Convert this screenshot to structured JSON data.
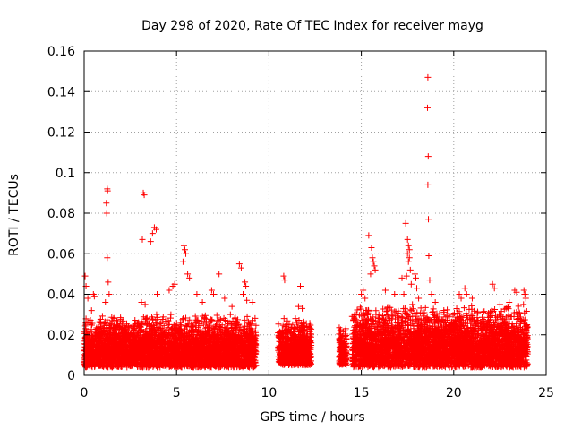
{
  "chart_data": {
    "type": "scatter",
    "title": "Day 298 of 2020, Rate Of TEC Index for receiver mayg",
    "xlabel": "GPS time / hours",
    "ylabel": "ROTI / TECUs",
    "xlim": [
      0,
      25
    ],
    "ylim": [
      0,
      0.16
    ],
    "xticks": [
      0,
      5,
      10,
      15,
      20,
      25
    ],
    "xtick_labels": [
      "0",
      "5",
      "10",
      "15",
      "20",
      "25"
    ],
    "yticks": [
      0,
      0.02,
      0.04,
      0.06,
      0.08,
      0.1,
      0.12,
      0.14,
      0.16
    ],
    "ytick_labels": [
      "0",
      "0.02",
      "0.04",
      "0.06",
      "0.08",
      "0.1",
      "0.12",
      "0.14",
      "0.16"
    ],
    "grid": true,
    "marker": "+",
    "marker_color": "#ff0000",
    "series": [
      {
        "name": "ROTI",
        "dense_segments": [
          {
            "start": 0.0,
            "end": 9.3,
            "y_min": 0.004,
            "y_max": 0.03
          },
          {
            "start": 10.5,
            "end": 12.3,
            "y_min": 0.005,
            "y_max": 0.028
          },
          {
            "start": 13.8,
            "end": 14.2,
            "y_min": 0.005,
            "y_max": 0.024
          },
          {
            "start": 14.5,
            "end": 24.0,
            "y_min": 0.004,
            "y_max": 0.035
          }
        ],
        "outliers": [
          {
            "x": 0.05,
            "y": 0.049
          },
          {
            "x": 0.1,
            "y": 0.044
          },
          {
            "x": 0.2,
            "y": 0.038
          },
          {
            "x": 0.4,
            "y": 0.032
          },
          {
            "x": 0.5,
            "y": 0.04
          },
          {
            "x": 0.55,
            "y": 0.039
          },
          {
            "x": 1.25,
            "y": 0.092
          },
          {
            "x": 1.27,
            "y": 0.091
          },
          {
            "x": 1.2,
            "y": 0.085
          },
          {
            "x": 1.22,
            "y": 0.08
          },
          {
            "x": 1.25,
            "y": 0.058
          },
          {
            "x": 1.3,
            "y": 0.046
          },
          {
            "x": 1.35,
            "y": 0.04
          },
          {
            "x": 1.15,
            "y": 0.036
          },
          {
            "x": 3.2,
            "y": 0.09
          },
          {
            "x": 3.25,
            "y": 0.089
          },
          {
            "x": 3.15,
            "y": 0.067
          },
          {
            "x": 3.1,
            "y": 0.036
          },
          {
            "x": 3.3,
            "y": 0.035
          },
          {
            "x": 3.8,
            "y": 0.073
          },
          {
            "x": 3.9,
            "y": 0.072
          },
          {
            "x": 3.7,
            "y": 0.07
          },
          {
            "x": 3.6,
            "y": 0.066
          },
          {
            "x": 3.95,
            "y": 0.04
          },
          {
            "x": 4.6,
            "y": 0.042
          },
          {
            "x": 4.8,
            "y": 0.044
          },
          {
            "x": 4.9,
            "y": 0.045
          },
          {
            "x": 5.4,
            "y": 0.064
          },
          {
            "x": 5.45,
            "y": 0.062
          },
          {
            "x": 5.5,
            "y": 0.06
          },
          {
            "x": 5.35,
            "y": 0.056
          },
          {
            "x": 5.6,
            "y": 0.05
          },
          {
            "x": 5.7,
            "y": 0.048
          },
          {
            "x": 6.1,
            "y": 0.04
          },
          {
            "x": 6.4,
            "y": 0.036
          },
          {
            "x": 6.9,
            "y": 0.042
          },
          {
            "x": 7.0,
            "y": 0.04
          },
          {
            "x": 7.3,
            "y": 0.05
          },
          {
            "x": 7.6,
            "y": 0.038
          },
          {
            "x": 8.0,
            "y": 0.034
          },
          {
            "x": 8.4,
            "y": 0.055
          },
          {
            "x": 8.5,
            "y": 0.053
          },
          {
            "x": 8.6,
            "y": 0.04
          },
          {
            "x": 8.7,
            "y": 0.046
          },
          {
            "x": 8.75,
            "y": 0.044
          },
          {
            "x": 8.8,
            "y": 0.037
          },
          {
            "x": 9.1,
            "y": 0.036
          },
          {
            "x": 10.8,
            "y": 0.049
          },
          {
            "x": 10.85,
            "y": 0.047
          },
          {
            "x": 11.7,
            "y": 0.044
          },
          {
            "x": 11.6,
            "y": 0.034
          },
          {
            "x": 11.8,
            "y": 0.033
          },
          {
            "x": 15.0,
            "y": 0.04
          },
          {
            "x": 15.1,
            "y": 0.042
          },
          {
            "x": 15.2,
            "y": 0.038
          },
          {
            "x": 15.4,
            "y": 0.069
          },
          {
            "x": 15.5,
            "y": 0.05
          },
          {
            "x": 15.55,
            "y": 0.063
          },
          {
            "x": 15.6,
            "y": 0.058
          },
          {
            "x": 15.65,
            "y": 0.056
          },
          {
            "x": 15.7,
            "y": 0.054
          },
          {
            "x": 15.75,
            "y": 0.052
          },
          {
            "x": 16.3,
            "y": 0.042
          },
          {
            "x": 16.8,
            "y": 0.04
          },
          {
            "x": 17.2,
            "y": 0.048
          },
          {
            "x": 17.4,
            "y": 0.075
          },
          {
            "x": 17.5,
            "y": 0.067
          },
          {
            "x": 17.55,
            "y": 0.064
          },
          {
            "x": 17.6,
            "y": 0.062
          },
          {
            "x": 17.5,
            "y": 0.06
          },
          {
            "x": 17.6,
            "y": 0.058
          },
          {
            "x": 17.55,
            "y": 0.056
          },
          {
            "x": 17.65,
            "y": 0.052
          },
          {
            "x": 17.45,
            "y": 0.049
          },
          {
            "x": 17.7,
            "y": 0.045
          },
          {
            "x": 17.3,
            "y": 0.04
          },
          {
            "x": 17.9,
            "y": 0.05
          },
          {
            "x": 17.95,
            "y": 0.048
          },
          {
            "x": 18.0,
            "y": 0.043
          },
          {
            "x": 18.1,
            "y": 0.038
          },
          {
            "x": 18.6,
            "y": 0.147
          },
          {
            "x": 18.58,
            "y": 0.132
          },
          {
            "x": 18.62,
            "y": 0.108
          },
          {
            "x": 18.6,
            "y": 0.094
          },
          {
            "x": 18.63,
            "y": 0.077
          },
          {
            "x": 18.65,
            "y": 0.059
          },
          {
            "x": 18.7,
            "y": 0.047
          },
          {
            "x": 18.8,
            "y": 0.04
          },
          {
            "x": 19.0,
            "y": 0.036
          },
          {
            "x": 20.3,
            "y": 0.04
          },
          {
            "x": 20.4,
            "y": 0.038
          },
          {
            "x": 20.6,
            "y": 0.043
          },
          {
            "x": 20.7,
            "y": 0.04
          },
          {
            "x": 21.0,
            "y": 0.038
          },
          {
            "x": 22.1,
            "y": 0.045
          },
          {
            "x": 22.2,
            "y": 0.043
          },
          {
            "x": 23.0,
            "y": 0.036
          },
          {
            "x": 23.3,
            "y": 0.042
          },
          {
            "x": 23.4,
            "y": 0.041
          },
          {
            "x": 23.8,
            "y": 0.042
          },
          {
            "x": 23.85,
            "y": 0.04
          },
          {
            "x": 23.9,
            "y": 0.038
          }
        ]
      }
    ]
  }
}
